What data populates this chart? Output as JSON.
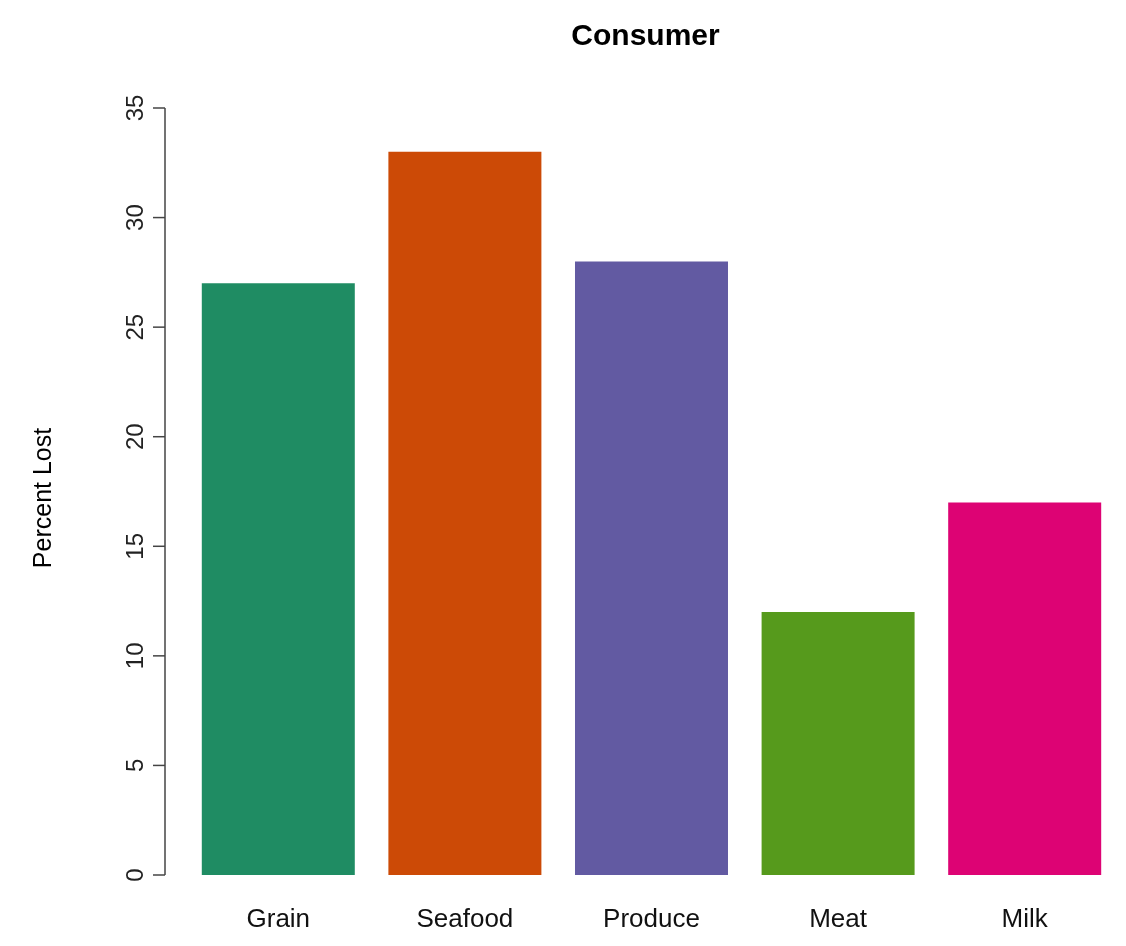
{
  "chart_data": {
    "type": "bar",
    "title": "Consumer",
    "ylabel": "Percent Lost",
    "categories": [
      "Grain",
      "Seafood",
      "Produce",
      "Meat",
      "Milk"
    ],
    "values": [
      27,
      33,
      28,
      12,
      17
    ],
    "colors": [
      "#1f8c63",
      "#cc4a06",
      "#625aa2",
      "#569a1c",
      "#dd0374"
    ],
    "ylim": [
      0,
      35
    ],
    "yticks": [
      0,
      5,
      10,
      15,
      20,
      25,
      30,
      35
    ],
    "grid": false,
    "legend": false
  }
}
